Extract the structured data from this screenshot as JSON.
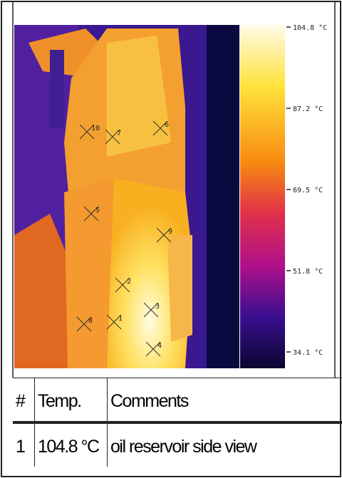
{
  "color_scale": {
    "labels": [
      "104.8 °C",
      "87.2 °C",
      "69.5 °C",
      "51.8 °C",
      "34.1 °C"
    ]
  },
  "markers": [
    "10",
    "7",
    "6",
    "5",
    "9",
    "2",
    "8",
    "1",
    "3",
    "4"
  ],
  "table": {
    "header": [
      "#",
      "Temp.",
      "Comments"
    ],
    "rows": [
      [
        "1",
        "104.8 °C",
        "oil reservoir side view"
      ]
    ]
  }
}
